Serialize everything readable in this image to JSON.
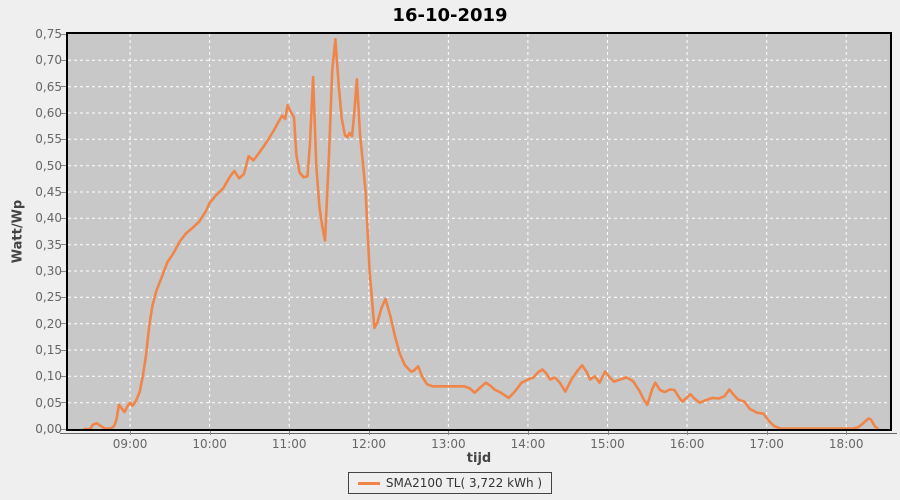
{
  "colors": {
    "line": "#f0854a",
    "plot_bg": "#c8c8c8",
    "outer_bg": "#efefef",
    "grid": "#ffffff",
    "tick_text": "#666666",
    "axis_label_text": "#444444",
    "title_text": "#000000",
    "border": "#000000"
  },
  "chart_data": {
    "type": "line",
    "title": "16-10-2019",
    "xlabel": "tijd",
    "ylabel": "Watt/Wp",
    "xlim": [
      8.22,
      18.55
    ],
    "ylim": [
      0,
      0.75
    ],
    "grid": "white dashed, vertical each hour, horizontal each 0.05",
    "legend": {
      "position": "bottom-center",
      "entries": [
        {
          "label": "SMA2100 TL( 3,722 kWh )",
          "color": "#f0854a"
        }
      ]
    },
    "xticks": [
      {
        "label": "09:00",
        "value": 9
      },
      {
        "label": "10:00",
        "value": 10
      },
      {
        "label": "11:00",
        "value": 11
      },
      {
        "label": "12:00",
        "value": 12
      },
      {
        "label": "13:00",
        "value": 13
      },
      {
        "label": "14:00",
        "value": 14
      },
      {
        "label": "15:00",
        "value": 15
      },
      {
        "label": "16:00",
        "value": 16
      },
      {
        "label": "17:00",
        "value": 17
      },
      {
        "label": "18:00",
        "value": 18
      }
    ],
    "yticks": [
      {
        "label": "0,00",
        "value": 0.0
      },
      {
        "label": "0,05",
        "value": 0.05
      },
      {
        "label": "0,10",
        "value": 0.1
      },
      {
        "label": "0,15",
        "value": 0.15
      },
      {
        "label": "0,20",
        "value": 0.2
      },
      {
        "label": "0,25",
        "value": 0.25
      },
      {
        "label": "0,30",
        "value": 0.3
      },
      {
        "label": "0,35",
        "value": 0.35
      },
      {
        "label": "0,40",
        "value": 0.4
      },
      {
        "label": "0,45",
        "value": 0.45
      },
      {
        "label": "0,50",
        "value": 0.5
      },
      {
        "label": "0,55",
        "value": 0.55
      },
      {
        "label": "0,60",
        "value": 0.6
      },
      {
        "label": "0,65",
        "value": 0.65
      },
      {
        "label": "0,70",
        "value": 0.7
      },
      {
        "label": "0,75",
        "value": 0.75
      }
    ],
    "series": [
      {
        "name": "SMA2100 TL( 3,722 kWh )",
        "color": "#f0854a",
        "points": [
          [
            8.43,
            0.0
          ],
          [
            8.5,
            0.0
          ],
          [
            8.53,
            0.008
          ],
          [
            8.58,
            0.011
          ],
          [
            8.63,
            0.006
          ],
          [
            8.68,
            0.001
          ],
          [
            8.76,
            0.001
          ],
          [
            8.8,
            0.006
          ],
          [
            8.83,
            0.018
          ],
          [
            8.86,
            0.046
          ],
          [
            8.9,
            0.038
          ],
          [
            8.93,
            0.032
          ],
          [
            8.97,
            0.044
          ],
          [
            9.0,
            0.05
          ],
          [
            9.03,
            0.044
          ],
          [
            9.07,
            0.052
          ],
          [
            9.12,
            0.07
          ],
          [
            9.16,
            0.1
          ],
          [
            9.2,
            0.14
          ],
          [
            9.24,
            0.195
          ],
          [
            9.28,
            0.233
          ],
          [
            9.33,
            0.262
          ],
          [
            9.4,
            0.289
          ],
          [
            9.47,
            0.317
          ],
          [
            9.55,
            0.335
          ],
          [
            9.62,
            0.355
          ],
          [
            9.7,
            0.371
          ],
          [
            9.78,
            0.381
          ],
          [
            9.87,
            0.394
          ],
          [
            9.95,
            0.413
          ],
          [
            10.0,
            0.429
          ],
          [
            10.08,
            0.444
          ],
          [
            10.17,
            0.457
          ],
          [
            10.25,
            0.478
          ],
          [
            10.31,
            0.49
          ],
          [
            10.37,
            0.476
          ],
          [
            10.43,
            0.484
          ],
          [
            10.49,
            0.518
          ],
          [
            10.55,
            0.51
          ],
          [
            10.62,
            0.524
          ],
          [
            10.68,
            0.537
          ],
          [
            10.75,
            0.553
          ],
          [
            10.81,
            0.568
          ],
          [
            10.86,
            0.582
          ],
          [
            10.91,
            0.595
          ],
          [
            10.95,
            0.589
          ],
          [
            10.98,
            0.615
          ],
          [
            11.01,
            0.605
          ],
          [
            11.06,
            0.592
          ],
          [
            11.09,
            0.52
          ],
          [
            11.13,
            0.487
          ],
          [
            11.18,
            0.478
          ],
          [
            11.23,
            0.48
          ],
          [
            11.26,
            0.54
          ],
          [
            11.3,
            0.668
          ],
          [
            11.34,
            0.5
          ],
          [
            11.38,
            0.42
          ],
          [
            11.42,
            0.381
          ],
          [
            11.45,
            0.358
          ],
          [
            11.5,
            0.52
          ],
          [
            11.54,
            0.68
          ],
          [
            11.58,
            0.74
          ],
          [
            11.62,
            0.655
          ],
          [
            11.66,
            0.59
          ],
          [
            11.7,
            0.558
          ],
          [
            11.73,
            0.554
          ],
          [
            11.76,
            0.562
          ],
          [
            11.79,
            0.556
          ],
          [
            11.82,
            0.605
          ],
          [
            11.85,
            0.664
          ],
          [
            11.89,
            0.56
          ],
          [
            11.93,
            0.5
          ],
          [
            11.96,
            0.45
          ],
          [
            11.99,
            0.36
          ],
          [
            12.01,
            0.3
          ],
          [
            12.04,
            0.245
          ],
          [
            12.07,
            0.192
          ],
          [
            12.11,
            0.203
          ],
          [
            12.16,
            0.23
          ],
          [
            12.21,
            0.247
          ],
          [
            12.27,
            0.215
          ],
          [
            12.33,
            0.176
          ],
          [
            12.39,
            0.143
          ],
          [
            12.45,
            0.122
          ],
          [
            12.53,
            0.109
          ],
          [
            12.57,
            0.111
          ],
          [
            12.62,
            0.119
          ],
          [
            12.67,
            0.1
          ],
          [
            12.73,
            0.085
          ],
          [
            12.8,
            0.081
          ],
          [
            12.92,
            0.081
          ],
          [
            13.05,
            0.081
          ],
          [
            13.2,
            0.081
          ],
          [
            13.27,
            0.077
          ],
          [
            13.33,
            0.069
          ],
          [
            13.41,
            0.08
          ],
          [
            13.47,
            0.088
          ],
          [
            13.53,
            0.082
          ],
          [
            13.58,
            0.075
          ],
          [
            13.66,
            0.069
          ],
          [
            13.76,
            0.059
          ],
          [
            13.84,
            0.072
          ],
          [
            13.92,
            0.088
          ],
          [
            14.0,
            0.094
          ],
          [
            14.07,
            0.098
          ],
          [
            14.13,
            0.108
          ],
          [
            14.18,
            0.113
          ],
          [
            14.23,
            0.106
          ],
          [
            14.28,
            0.094
          ],
          [
            14.34,
            0.098
          ],
          [
            14.4,
            0.088
          ],
          [
            14.47,
            0.071
          ],
          [
            14.55,
            0.095
          ],
          [
            14.62,
            0.11
          ],
          [
            14.68,
            0.121
          ],
          [
            14.74,
            0.108
          ],
          [
            14.78,
            0.094
          ],
          [
            14.84,
            0.1
          ],
          [
            14.9,
            0.088
          ],
          [
            14.97,
            0.109
          ],
          [
            15.03,
            0.098
          ],
          [
            15.08,
            0.09
          ],
          [
            15.16,
            0.094
          ],
          [
            15.24,
            0.098
          ],
          [
            15.32,
            0.091
          ],
          [
            15.4,
            0.073
          ],
          [
            15.46,
            0.055
          ],
          [
            15.5,
            0.046
          ],
          [
            15.56,
            0.075
          ],
          [
            15.6,
            0.088
          ],
          [
            15.66,
            0.074
          ],
          [
            15.72,
            0.07
          ],
          [
            15.78,
            0.075
          ],
          [
            15.84,
            0.074
          ],
          [
            15.9,
            0.06
          ],
          [
            15.94,
            0.052
          ],
          [
            16.0,
            0.06
          ],
          [
            16.04,
            0.066
          ],
          [
            16.1,
            0.057
          ],
          [
            16.16,
            0.05
          ],
          [
            16.24,
            0.055
          ],
          [
            16.32,
            0.059
          ],
          [
            16.4,
            0.058
          ],
          [
            16.47,
            0.062
          ],
          [
            16.53,
            0.075
          ],
          [
            16.58,
            0.066
          ],
          [
            16.64,
            0.056
          ],
          [
            16.72,
            0.052
          ],
          [
            16.79,
            0.038
          ],
          [
            16.88,
            0.031
          ],
          [
            16.96,
            0.029
          ],
          [
            17.03,
            0.015
          ],
          [
            17.1,
            0.005
          ],
          [
            17.17,
            0.001
          ],
          [
            17.4,
            0.001
          ],
          [
            17.7,
            0.001
          ],
          [
            17.95,
            0.001
          ],
          [
            18.08,
            0.001
          ],
          [
            18.15,
            0.003
          ],
          [
            18.22,
            0.012
          ],
          [
            18.28,
            0.02
          ],
          [
            18.31,
            0.018
          ],
          [
            18.36,
            0.005
          ],
          [
            18.4,
            0.0
          ]
        ]
      }
    ]
  }
}
